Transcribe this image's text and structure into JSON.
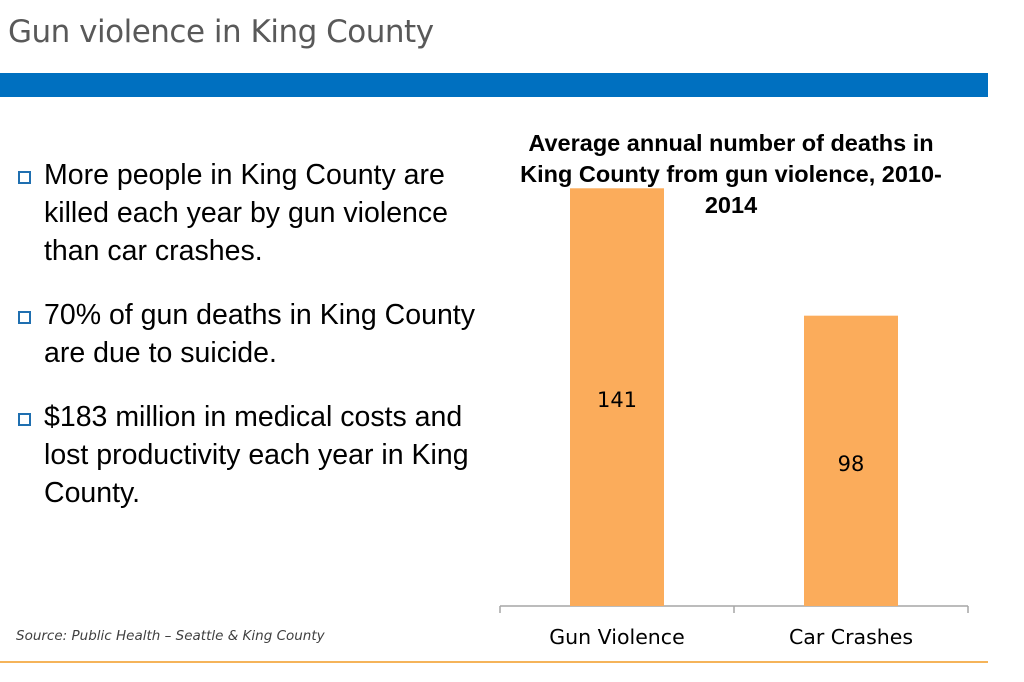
{
  "slide": {
    "title": "Gun violence in King County",
    "accent_color": "#0070c0",
    "rule_color": "#f5b45a"
  },
  "bullets": [
    {
      "text": "More people in King County are killed each year by gun violence than car crashes."
    },
    {
      "text": "70% of gun deaths in King County are due to suicide."
    },
    {
      "text": "$183 million in medical costs and lost productivity each year in King County."
    }
  ],
  "source": "Source: Public Health – Seattle & King County",
  "chart_data": {
    "type": "bar",
    "title": "Average annual number of deaths in King County from gun violence, 2010-2014",
    "categories": [
      "Gun Violence",
      "Car Crashes"
    ],
    "values": [
      141,
      98
    ],
    "data_labels": [
      "141",
      "98"
    ],
    "xlabel": "",
    "ylabel": "",
    "ylim": [
      0,
      160
    ],
    "grid": false,
    "legend": "none",
    "bar_color": "#fbac5b"
  }
}
